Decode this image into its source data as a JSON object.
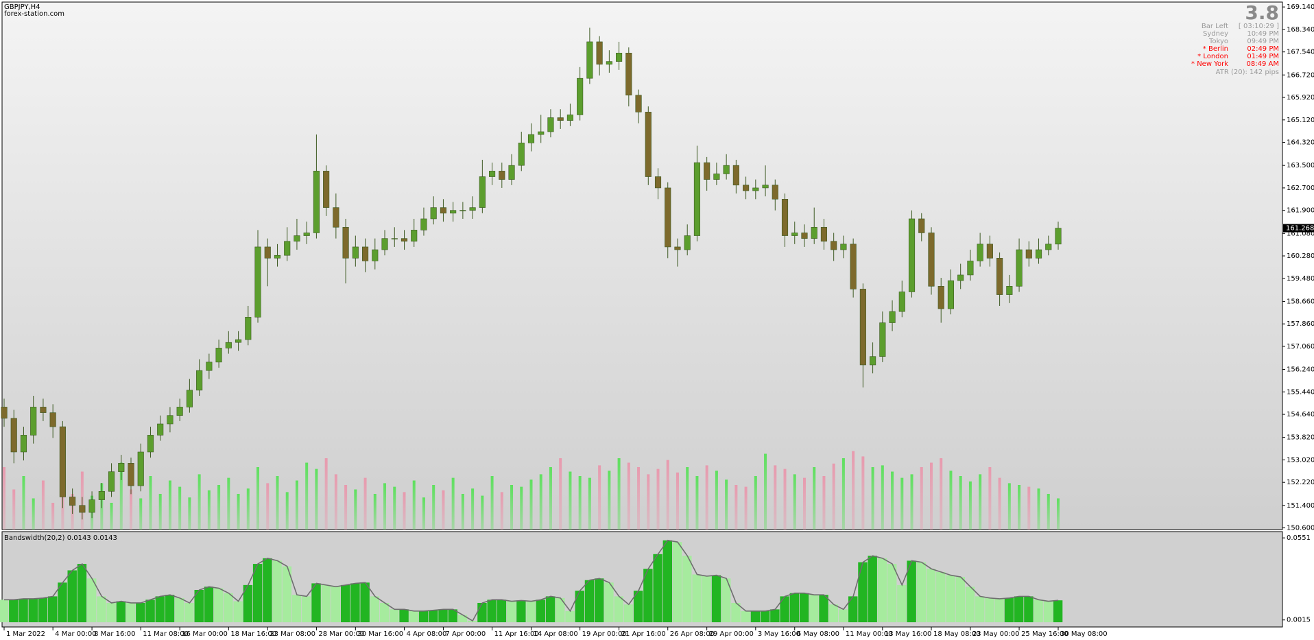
{
  "chart_data": [
    {
      "type": "candlestick",
      "title": "GBPJPY,H4",
      "subtitle": "forex-station.com",
      "categories": [
        "1 Mar 2022",
        null,
        null,
        null,
        null,
        "4 Mar 00:00",
        null,
        null,
        null,
        "8 Mar 16:00",
        null,
        null,
        null,
        null,
        "11 Mar 08:00",
        null,
        null,
        null,
        "16 Mar 00:00",
        null,
        null,
        null,
        null,
        "18 Mar 16:00",
        null,
        null,
        null,
        "23 Mar 08:00",
        null,
        null,
        null,
        null,
        "28 Mar 00:00",
        null,
        null,
        null,
        "30 Mar 16:00",
        null,
        null,
        null,
        null,
        "4 Apr 08:00",
        null,
        null,
        null,
        "7 Apr 00:00",
        null,
        null,
        null,
        null,
        "11 Apr 16:00",
        null,
        null,
        null,
        "14 Apr 08:00",
        null,
        null,
        null,
        null,
        "19 Apr 00:00",
        null,
        null,
        null,
        "21 Apr 16:00",
        null,
        null,
        null,
        null,
        "26 Apr 08:00",
        null,
        null,
        null,
        "29 Apr 00:00",
        null,
        null,
        null,
        null,
        "3 May 16:00",
        null,
        null,
        null,
        "6 May 08:00",
        null,
        null,
        null,
        null,
        "11 May 00:00",
        null,
        null,
        null,
        "13 May 16:00",
        null,
        null,
        null,
        null,
        "18 May 08:00",
        null,
        null,
        null,
        "23 May 00:00",
        null,
        null,
        null,
        null,
        "25 May 16:00",
        null,
        null,
        null,
        "30 May 08:00"
      ],
      "open": [
        154.9,
        154.5,
        153.3,
        153.9,
        154.9,
        154.7,
        154.2,
        151.7,
        151.4,
        151.15,
        151.6,
        151.9,
        152.6,
        152.9,
        152.1,
        153.3,
        153.9,
        154.3,
        154.6,
        154.9,
        155.5,
        156.2,
        156.5,
        157.0,
        157.2,
        157.3,
        158.1,
        160.6,
        160.2,
        160.3,
        160.8,
        161.0,
        161.1,
        163.3,
        162.0,
        161.3,
        160.2,
        160.6,
        160.1,
        160.5,
        160.9,
        160.9,
        160.8,
        161.2,
        161.6,
        162.0,
        161.8,
        161.9,
        161.9,
        162.0,
        163.1,
        163.3,
        163.0,
        163.5,
        164.3,
        164.6,
        164.7,
        165.2,
        165.1,
        165.3,
        166.6,
        167.9,
        167.1,
        167.2,
        167.5,
        166.0,
        165.4,
        163.1,
        162.7,
        160.6,
        160.5,
        161.0,
        163.6,
        163.0,
        163.2,
        163.5,
        162.8,
        162.6,
        162.7,
        162.8,
        162.3,
        161.0,
        161.1,
        160.9,
        161.3,
        160.8,
        160.5,
        160.7,
        159.1,
        156.4,
        156.7,
        157.9,
        158.3,
        159.0,
        161.6,
        161.1,
        159.2,
        158.4,
        159.4,
        159.6,
        160.1,
        160.7,
        160.2,
        158.9,
        159.2,
        160.5,
        160.2,
        160.5,
        160.7
      ],
      "high": [
        155.2,
        154.8,
        154.2,
        155.3,
        155.2,
        155.0,
        154.4,
        152.0,
        151.7,
        151.9,
        152.2,
        152.9,
        153.2,
        153.1,
        153.6,
        154.2,
        154.6,
        154.9,
        155.2,
        155.9,
        156.6,
        156.8,
        157.3,
        157.6,
        157.6,
        158.5,
        161.2,
        160.9,
        160.7,
        161.3,
        161.6,
        161.5,
        164.6,
        163.5,
        162.5,
        161.6,
        161.0,
        160.9,
        160.9,
        161.2,
        161.3,
        161.2,
        161.6,
        162.0,
        162.4,
        162.3,
        162.2,
        162.2,
        162.4,
        163.7,
        163.6,
        163.6,
        163.9,
        164.7,
        165.0,
        165.3,
        165.5,
        165.5,
        165.7,
        167.0,
        168.4,
        168.1,
        167.6,
        167.9,
        167.7,
        166.2,
        165.6,
        163.4,
        162.9,
        160.9,
        161.4,
        164.2,
        163.8,
        163.6,
        163.9,
        163.7,
        163.1,
        163.0,
        163.5,
        163.0,
        162.5,
        161.5,
        161.4,
        162.0,
        161.6,
        161.1,
        161.0,
        160.9,
        159.3,
        157.2,
        158.3,
        158.7,
        159.4,
        161.9,
        161.8,
        161.3,
        159.5,
        159.8,
        160.0,
        160.5,
        161.1,
        161.0,
        160.4,
        159.6,
        160.9,
        160.8,
        160.9,
        161.0,
        161.5
      ],
      "low": [
        154.2,
        152.9,
        153.0,
        153.6,
        154.4,
        153.8,
        151.3,
        151.1,
        150.9,
        150.95,
        151.3,
        151.7,
        152.3,
        151.8,
        151.9,
        153.1,
        153.7,
        154.0,
        154.4,
        154.7,
        155.3,
        155.9,
        156.3,
        156.8,
        156.9,
        157.1,
        157.9,
        159.2,
        159.9,
        160.1,
        160.5,
        160.7,
        160.9,
        161.7,
        160.9,
        159.3,
        159.9,
        159.7,
        159.8,
        160.3,
        160.6,
        160.5,
        160.6,
        161.0,
        161.4,
        161.5,
        161.5,
        161.6,
        161.6,
        161.8,
        162.8,
        162.7,
        162.8,
        163.3,
        164.0,
        164.3,
        164.5,
        164.8,
        164.9,
        165.1,
        166.4,
        166.7,
        166.8,
        166.9,
        165.6,
        165.0,
        162.8,
        162.3,
        160.2,
        159.9,
        160.3,
        160.8,
        162.6,
        162.8,
        163.0,
        162.5,
        162.3,
        162.3,
        162.4,
        161.9,
        160.6,
        160.7,
        160.6,
        160.7,
        160.5,
        160.1,
        160.2,
        158.8,
        155.6,
        156.1,
        156.5,
        157.6,
        158.1,
        158.8,
        160.8,
        158.9,
        157.9,
        158.2,
        159.1,
        159.4,
        159.9,
        159.9,
        158.5,
        158.6,
        159.0,
        159.9,
        160.0,
        160.3,
        160.5
      ],
      "close": [
        154.5,
        153.3,
        153.9,
        154.9,
        154.7,
        154.2,
        151.7,
        151.4,
        151.15,
        151.6,
        151.9,
        152.6,
        152.9,
        152.1,
        153.3,
        153.9,
        154.3,
        154.6,
        154.9,
        155.5,
        156.2,
        156.5,
        157.0,
        157.2,
        157.3,
        158.1,
        160.6,
        160.2,
        160.3,
        160.8,
        161.0,
        161.1,
        163.3,
        162.0,
        161.3,
        160.2,
        160.6,
        160.1,
        160.5,
        160.9,
        160.9,
        160.8,
        161.2,
        161.6,
        162.0,
        161.8,
        161.9,
        161.9,
        162.0,
        163.1,
        163.3,
        163.0,
        163.5,
        164.3,
        164.6,
        164.7,
        165.2,
        165.1,
        165.3,
        166.6,
        167.9,
        167.1,
        167.2,
        167.5,
        166.0,
        165.4,
        163.1,
        162.7,
        160.6,
        160.5,
        161.0,
        163.6,
        163.0,
        163.2,
        163.5,
        162.8,
        162.6,
        162.7,
        162.8,
        162.3,
        161.0,
        161.1,
        160.9,
        161.3,
        160.8,
        160.5,
        160.7,
        159.1,
        156.4,
        156.7,
        157.9,
        158.3,
        159.0,
        161.6,
        161.1,
        159.2,
        158.4,
        159.4,
        159.6,
        160.1,
        160.7,
        160.2,
        158.9,
        159.2,
        160.5,
        160.2,
        160.5,
        160.7,
        161.268
      ],
      "volume": [
        70,
        45,
        60,
        35,
        55,
        30,
        50,
        40,
        65,
        38,
        52,
        30,
        75,
        45,
        35,
        60,
        40,
        55,
        48,
        36,
        62,
        44,
        50,
        58,
        40,
        46,
        70,
        52,
        60,
        42,
        55,
        75,
        68,
        80,
        62,
        50,
        45,
        58,
        40,
        52,
        48,
        42,
        55,
        36,
        50,
        44,
        58,
        40,
        46,
        38,
        60,
        42,
        50,
        48,
        56,
        62,
        70,
        80,
        65,
        60,
        58,
        72,
        66,
        80,
        75,
        70,
        62,
        68,
        78,
        64,
        70,
        60,
        72,
        66,
        56,
        50,
        48,
        60,
        85,
        72,
        68,
        62,
        58,
        70,
        60,
        74,
        80,
        88,
        82,
        70,
        72,
        65,
        58,
        62,
        70,
        75,
        80,
        66,
        60,
        54,
        62,
        70,
        58,
        52,
        50,
        48,
        46,
        40,
        35
      ],
      "ylim": [
        150.54,
        169.29
      ],
      "yticks": [
        {
          "value": 169.14,
          "label": "169.140"
        },
        {
          "value": 168.34,
          "label": "168.340"
        },
        {
          "value": 167.54,
          "label": "167.540"
        },
        {
          "value": 166.72,
          "label": "166.720"
        },
        {
          "value": 165.92,
          "label": "165.920"
        },
        {
          "value": 165.12,
          "label": "165.120"
        },
        {
          "value": 164.32,
          "label": "164.320"
        },
        {
          "value": 163.5,
          "label": "163.500"
        },
        {
          "value": 162.7,
          "label": "162.700"
        },
        {
          "value": 161.9,
          "label": "161.900"
        },
        {
          "value": 161.08,
          "label": "161.080"
        },
        {
          "value": 160.28,
          "label": "160.280"
        },
        {
          "value": 159.48,
          "label": "159.480"
        },
        {
          "value": 158.66,
          "label": "158.660"
        },
        {
          "value": 157.86,
          "label": "157.860"
        },
        {
          "value": 157.06,
          "label": "157.060"
        },
        {
          "value": 156.24,
          "label": "156.240"
        },
        {
          "value": 155.44,
          "label": "155.440"
        },
        {
          "value": 154.64,
          "label": "154.640"
        },
        {
          "value": 153.82,
          "label": "153.820"
        },
        {
          "value": 153.02,
          "label": "153.020"
        },
        {
          "value": 152.22,
          "label": "152.220"
        },
        {
          "value": 151.4,
          "label": "151.400"
        },
        {
          "value": 150.6,
          "label": "150.600"
        }
      ],
      "colors": {
        "bull": "#5c9e2e",
        "bear": "#7d6a2c",
        "wick": "#3d5a22",
        "volume_up": "#5ee05e",
        "volume_down": "#e89aae"
      }
    },
    {
      "type": "bar",
      "title": "Bandswidth(20,2) 0.0143 0.0143",
      "values": [
        0.0147,
        0.0147,
        0.0153,
        0.0153,
        0.0158,
        0.0169,
        0.0259,
        0.0339,
        0.0381,
        0.0286,
        0.0169,
        0.0126,
        0.0137,
        0.0126,
        0.0126,
        0.0147,
        0.0169,
        0.0179,
        0.0158,
        0.0126,
        0.0211,
        0.0232,
        0.0222,
        0.019,
        0.0137,
        0.0243,
        0.0381,
        0.0418,
        0.0402,
        0.0365,
        0.0179,
        0.0169,
        0.0254,
        0.0243,
        0.0232,
        0.0243,
        0.0254,
        0.0259,
        0.0169,
        0.0126,
        0.0084,
        0.0084,
        0.0073,
        0.0073,
        0.0078,
        0.0084,
        0.0084,
        0.0047,
        0.0009,
        0.0126,
        0.0147,
        0.0147,
        0.0137,
        0.0142,
        0.0137,
        0.0147,
        0.0169,
        0.0158,
        0.0073,
        0.0206,
        0.0275,
        0.0286,
        0.0259,
        0.0169,
        0.0116,
        0.0206,
        0.0349,
        0.0445,
        0.0535,
        0.0524,
        0.0434,
        0.0312,
        0.0301,
        0.0307,
        0.0286,
        0.0126,
        0.0073,
        0.0073,
        0.0073,
        0.0084,
        0.0169,
        0.019,
        0.019,
        0.0179,
        0.0179,
        0.0116,
        0.0084,
        0.0169,
        0.0392,
        0.0434,
        0.0418,
        0.0381,
        0.0243,
        0.0402,
        0.0392,
        0.0349,
        0.0328,
        0.0307,
        0.0296,
        0.0232,
        0.0169,
        0.0158,
        0.0153,
        0.0158,
        0.0169,
        0.0169,
        0.0147,
        0.0137,
        0.0143
      ],
      "ylim": [
        -0.0022,
        0.0583
      ],
      "yticks": [
        0.0551,
        0.0015
      ],
      "colors": {
        "rising": "#22b522",
        "falling": "#a6eb9e",
        "line": "#6e6e6e"
      }
    }
  ],
  "info_panel": {
    "spread": "3.8",
    "rows": [
      {
        "label": "Bar Left",
        "value": "[ 03:10:29 ]",
        "color": "#9a9a9a"
      },
      {
        "label": "Sydney",
        "value": "10:49 PM",
        "color": "#9a9a9a"
      },
      {
        "label": "Tokyo",
        "value": "09:49 PM",
        "color": "#9a9a9a"
      },
      {
        "label": "* Berlin",
        "value": "02:49 PM",
        "color": "#ff0000"
      },
      {
        "label": "* London",
        "value": "01:49 PM",
        "color": "#ff0000"
      },
      {
        "label": "* New York",
        "value": "08:49 AM",
        "color": "#ff0000"
      }
    ],
    "atr": "ATR (20): 142 pips"
  }
}
